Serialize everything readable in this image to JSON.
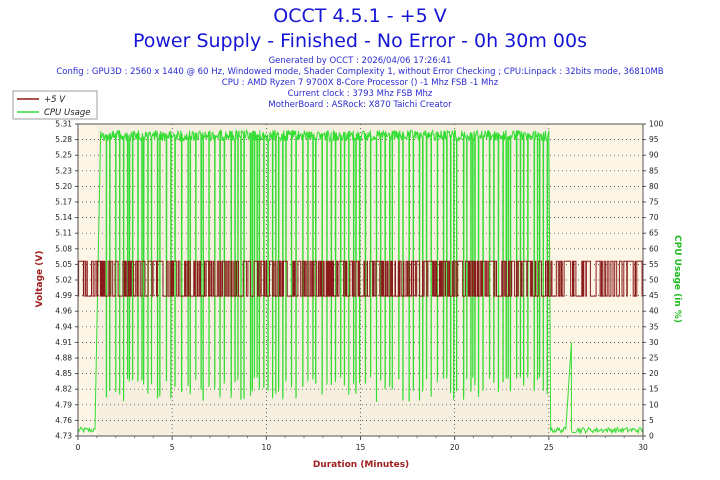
{
  "header": {
    "title_line1": "OCCT 4.5.1 - +5 V",
    "title_line2": "Power Supply - Finished - No Error - 0h 30m 00s",
    "generated": "Generated by OCCT : 2026/04/06 17:26:41",
    "config": "Config : GPU3D : 2560 x 1440 @ 60 Hz, Windowed mode, Shader Complexity 1, without Error Checking ; CPU:Linpack : 32bits mode, 36810MB",
    "cpu": "CPU : AMD Ryzen 7 9700X 8-Core Processor () -1 Mhz FSB -1 Mhz",
    "clock": "Current clock : 3793 Mhz FSB  Mhz",
    "motherboard": "MotherBoard : ASRock: X870 Taichi Creator"
  },
  "colors": {
    "voltage": "#8b1a1a",
    "cpu_usage": "#33dd33",
    "plot_bg": "#fdf5e6",
    "shade_bg": "#f0ead8",
    "y2_label": "#22bb22",
    "title": "#1515d6"
  },
  "chart_data": {
    "type": "line",
    "xlabel": "Duration (Minutes)",
    "ylabel": "Voltage (V)",
    "y2label": "CPU Usage (in %)",
    "xlim": [
      0,
      30
    ],
    "ylim": [
      4.73,
      5.31
    ],
    "y2lim": [
      0,
      100
    ],
    "x_ticks": [
      0,
      5,
      10,
      15,
      20,
      25,
      30
    ],
    "y_ticks": [
      "4.73",
      "4.76",
      "4.79",
      "4.82",
      "4.85",
      "4.88",
      "4.91",
      "4.94",
      "4.96",
      "4.99",
      "5.02",
      "5.05",
      "5.08",
      "5.11",
      "5.14",
      "5.17",
      "5.20",
      "5.23",
      "5.25",
      "5.28",
      "5.31"
    ],
    "y2_ticks": [
      0,
      5,
      10,
      15,
      20,
      25,
      30,
      35,
      40,
      45,
      50,
      55,
      60,
      65,
      70,
      75,
      80,
      85,
      90,
      95,
      100
    ],
    "legend": {
      "position": "top-left",
      "entries": [
        "+5 V",
        "CPU Usage"
      ]
    },
    "grid": true,
    "test_window_minutes": [
      1.0,
      25.0
    ],
    "series": [
      {
        "name": "+5 V",
        "axis": "left",
        "levels": [
          4.99,
          5.055
        ],
        "segments": [
          {
            "x": [
              0,
              1
            ],
            "pattern": "toggle",
            "values": [
              4.99,
              5.055
            ]
          },
          {
            "x": [
              1,
              25
            ],
            "pattern": "rapid-toggle",
            "values": [
              4.99,
              5.055
            ]
          },
          {
            "x": [
              25,
              30
            ],
            "pattern": "toggle",
            "values": [
              4.99,
              5.055
            ]
          }
        ]
      },
      {
        "name": "CPU Usage",
        "axis": "right",
        "segments": [
          {
            "x": [
              0,
              0.9
            ],
            "values": [
              1,
              2
            ]
          },
          {
            "x": [
              0.9,
              1.2
            ],
            "values": [
              2,
              97
            ]
          },
          {
            "x": [
              1.2,
              25
            ],
            "pattern": "oscillating",
            "values": [
              11,
              98
            ]
          },
          {
            "x": [
              25,
              25.1
            ],
            "values": [
              98,
              2
            ]
          },
          {
            "x": [
              25.1,
              25.9
            ],
            "values": [
              1,
              2
            ]
          },
          {
            "x": [
              25.9,
              26.2
            ],
            "values": [
              2,
              30
            ]
          },
          {
            "x": [
              26.2,
              30
            ],
            "values": [
              1,
              2
            ]
          }
        ]
      }
    ]
  }
}
